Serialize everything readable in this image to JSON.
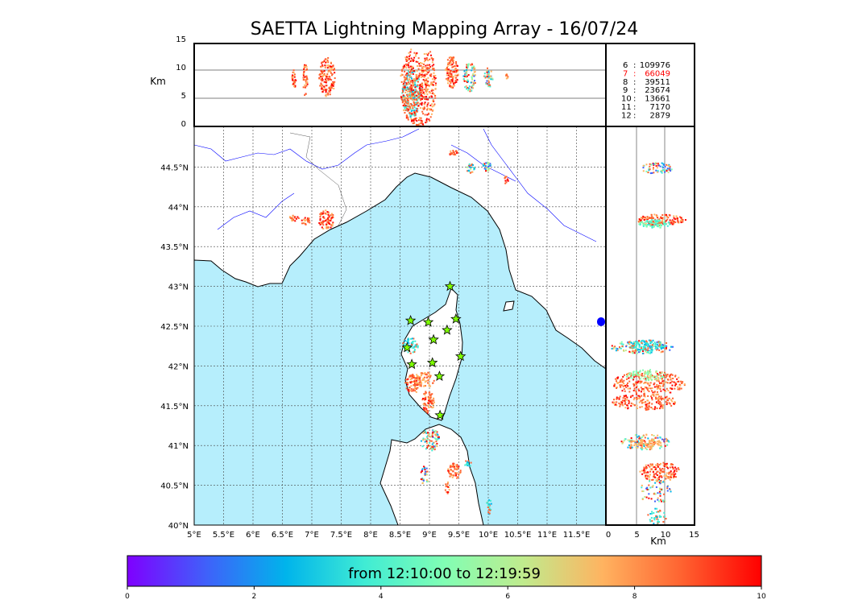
{
  "chart_data": {
    "type": "scatter",
    "title": "SAETTA Lightning Mapping Array - 16/07/24",
    "altitude_panel": {
      "ylabel": "Km",
      "yticks": [
        "15",
        "10",
        "5",
        "0"
      ],
      "ylim": [
        0,
        15
      ]
    },
    "map_panel": {
      "xticks": [
        "5°E",
        "5.5°E",
        "6°E",
        "6.5°E",
        "7°E",
        "7.5°E",
        "8°E",
        "8.5°E",
        "9°E",
        "9.5°E",
        "10°E",
        "10.5°E",
        "11°E",
        "11.5°E"
      ],
      "yticks": [
        "44.5°N",
        "44°N",
        "43.5°N",
        "43°N",
        "42.5°N",
        "42°N",
        "41.5°N",
        "41°N",
        "40.5°N",
        "40°N"
      ],
      "xlim": [
        5,
        12
      ],
      "ylim": [
        40,
        45
      ]
    },
    "side_panel": {
      "xlabel": "Km",
      "xticks": [
        "0",
        "5",
        "10",
        "15"
      ],
      "xlim": [
        0,
        15
      ]
    },
    "legend": [
      {
        "key": "6",
        "count": "109976",
        "color": "#000000"
      },
      {
        "key": "7",
        "count": "66049",
        "color": "#ff0000"
      },
      {
        "key": "8",
        "count": "39511",
        "color": "#000000"
      },
      {
        "key": "9",
        "count": "23674",
        "color": "#000000"
      },
      {
        "key": "10",
        "count": "13661",
        "color": "#000000"
      },
      {
        "key": "11",
        "count": "7170",
        "color": "#000000"
      },
      {
        "key": "12",
        "count": "2879",
        "color": "#000000"
      }
    ],
    "colorbar": {
      "label": "from 12:10:00 to 12:19:59",
      "ticks": [
        "0",
        "2",
        "4",
        "6",
        "8",
        "10"
      ],
      "range": [
        0,
        10
      ],
      "colors": [
        "#7f00ff",
        "#3f61fa",
        "#00b4eb",
        "#40ecd4",
        "#81feb4",
        "#c0eb8d",
        "#ffb360",
        "#ff6230",
        "#ff0000"
      ]
    },
    "stations": [
      [
        9.35,
        43.0
      ],
      [
        8.68,
        42.57
      ],
      [
        8.98,
        42.55
      ],
      [
        9.45,
        42.59
      ],
      [
        9.3,
        42.45
      ],
      [
        9.07,
        42.33
      ],
      [
        8.62,
        42.23
      ],
      [
        9.05,
        42.04
      ],
      [
        9.53,
        42.12
      ],
      [
        8.7,
        42.02
      ],
      [
        9.17,
        41.87
      ],
      [
        9.18,
        41.38
      ]
    ]
  }
}
